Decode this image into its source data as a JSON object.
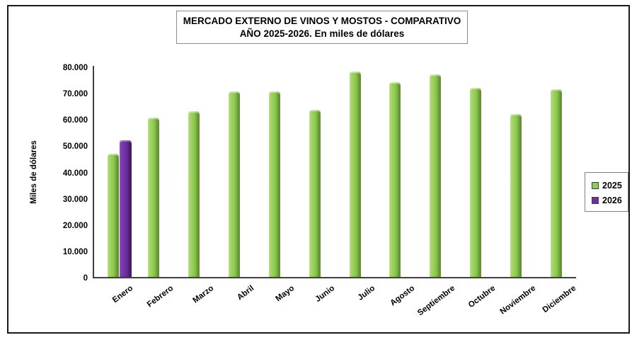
{
  "chart": {
    "title_line1": "MERCADO EXTERNO DE VINOS Y MOSTOS - COMPARATIVO",
    "title_line2": "AÑO 2025-2026. En miles de dólares",
    "y_axis_title": "Miles de dólares"
  },
  "legend": {
    "items": [
      {
        "label": "2025",
        "color": "#92cc52"
      },
      {
        "label": "2026",
        "color": "#7030a0"
      }
    ]
  },
  "chart_data": {
    "type": "bar",
    "title": "MERCADO EXTERNO DE VINOS Y MOSTOS - COMPARATIVO AÑO 2025-2026. En miles de dólares",
    "xlabel": "",
    "ylabel": "Miles de dólares",
    "ylim": [
      0,
      80000
    ],
    "grid": false,
    "legend_position": "right",
    "y_ticks": [
      {
        "label": "0",
        "value": 0
      },
      {
        "label": "10.000",
        "value": 10000
      },
      {
        "label": "20.000",
        "value": 20000
      },
      {
        "label": "30.000",
        "value": 30000
      },
      {
        "label": "40.000",
        "value": 40000
      },
      {
        "label": "50.000",
        "value": 50000
      },
      {
        "label": "60.000",
        "value": 60000
      },
      {
        "label": "70.000",
        "value": 70000
      },
      {
        "label": "80.000",
        "value": 80000
      }
    ],
    "categories": [
      "Enero",
      "Febrero",
      "Marzo",
      "Abril",
      "Mayo",
      "Junio",
      "Julio",
      "Agosto",
      "Septiembre",
      "Octubre",
      "Noviembre",
      "Diciembre"
    ],
    "series": [
      {
        "name": "2025",
        "color": "#92cc52",
        "values": [
          47000,
          60500,
          63000,
          70500,
          70500,
          63500,
          78000,
          74000,
          77000,
          72000,
          62000,
          71500
        ]
      },
      {
        "name": "2026",
        "color": "#7030a0",
        "values": [
          52000,
          null,
          null,
          null,
          null,
          null,
          null,
          null,
          null,
          null,
          null,
          null
        ]
      }
    ]
  }
}
